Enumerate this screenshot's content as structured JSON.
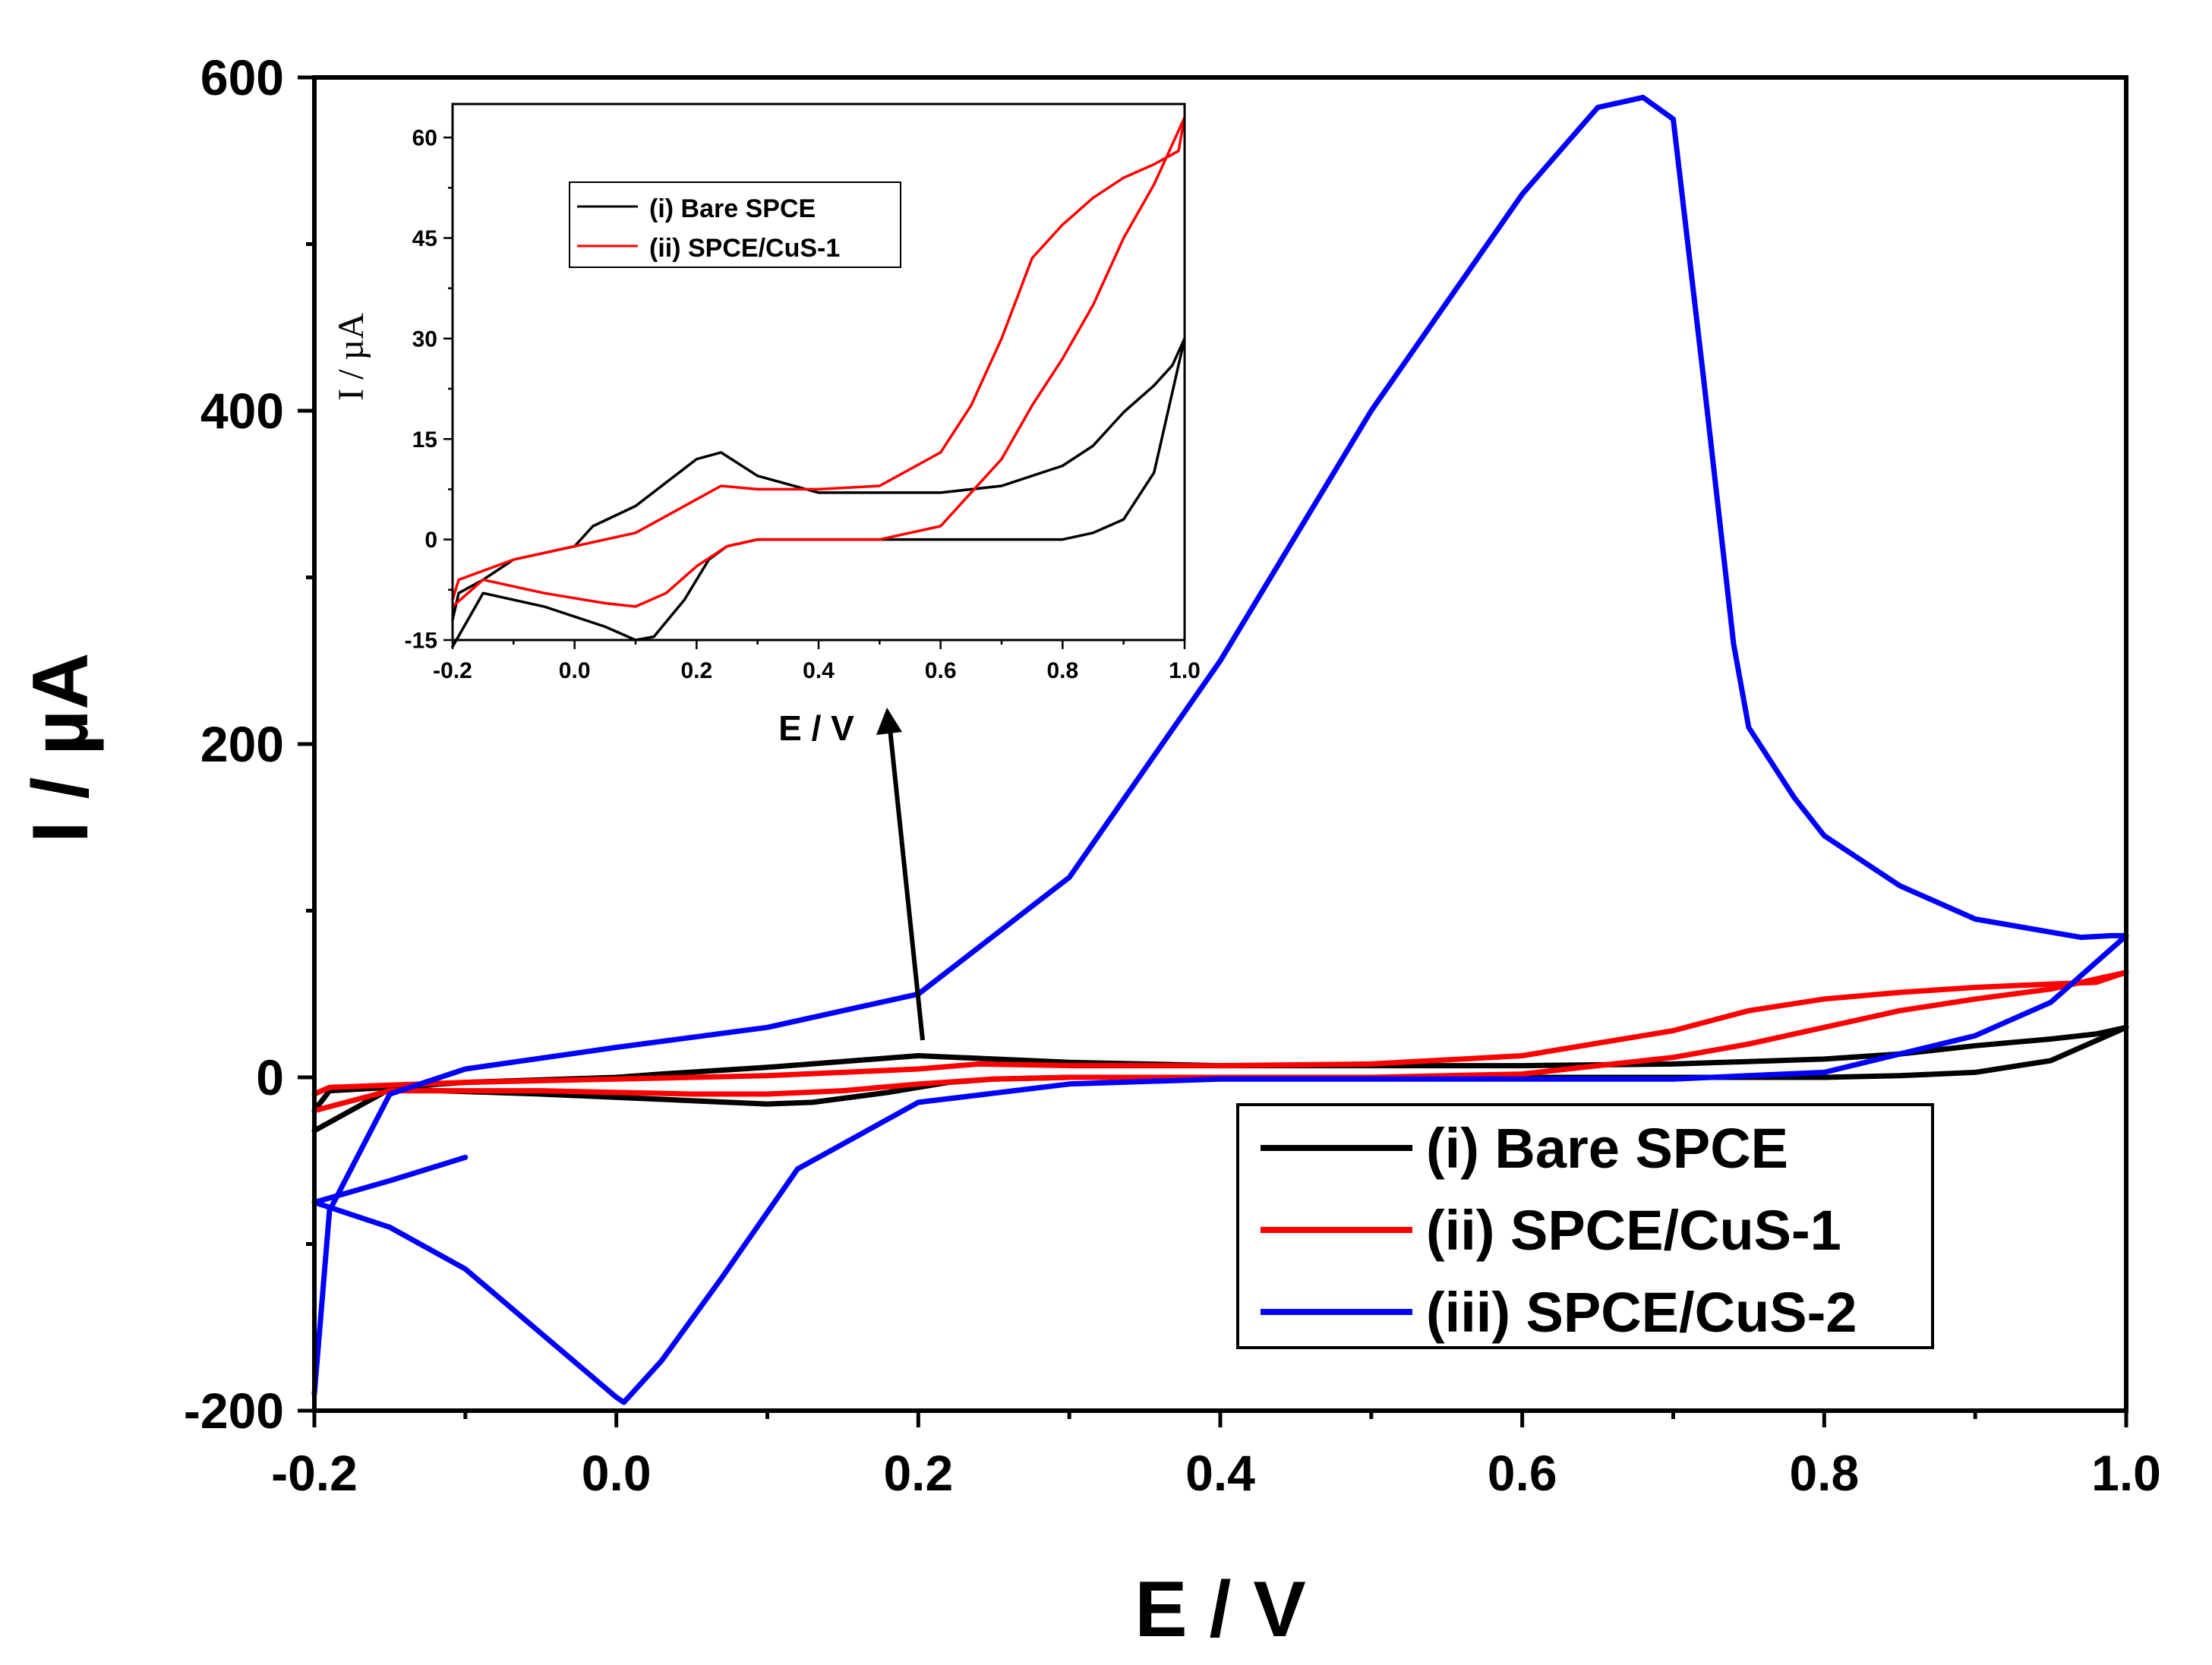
{
  "chart_data": [
    {
      "id": "main",
      "type": "line",
      "title": "",
      "xlabel": "E / V",
      "ylabel": "I / µA",
      "xlim": [
        -0.2,
        1.0
      ],
      "ylim": [
        -200,
        600
      ],
      "xticks": [
        -0.2,
        0.0,
        0.2,
        0.4,
        0.6,
        0.8,
        1.0
      ],
      "xtick_labels": [
        "-0.2",
        "0.0",
        "0.2",
        "0.4",
        "0.6",
        "0.8",
        "1.0"
      ],
      "yticks": [
        -200,
        0,
        200,
        400,
        600
      ],
      "ytick_labels": [
        "-200",
        "0",
        "200",
        "400",
        "600"
      ],
      "legend_position": "bottom-right",
      "legend": [
        "(i) Bare SPCE",
        "(ii) SPCE/CuS-1",
        "(iii) SPCE/CuS-2"
      ],
      "series": [
        {
          "name": "(i) Bare SPCE",
          "color": "#000000",
          "x": [
            -0.2,
            -0.15,
            -0.05,
            0.05,
            0.1,
            0.13,
            0.18,
            0.22,
            0.25,
            0.3,
            0.4,
            0.5,
            0.6,
            0.7,
            0.8,
            0.85,
            0.9,
            0.95,
            1.0,
            0.98,
            0.95,
            0.9,
            0.85,
            0.8,
            0.7,
            0.6,
            0.5,
            0.4,
            0.3,
            0.2,
            0.1,
            0.03,
            0.0,
            -0.1,
            -0.15,
            -0.19,
            -0.2
          ],
          "y": [
            -32,
            -7,
            -10,
            -14,
            -16,
            -15,
            -9,
            -3,
            -1,
            0,
            0,
            0,
            0,
            0,
            0,
            1,
            3,
            10,
            30,
            26,
            23,
            19,
            14,
            11,
            8,
            7,
            7,
            7,
            9,
            13,
            6,
            2,
            0,
            -3,
            -6,
            -8,
            -20
          ]
        },
        {
          "name": "(ii) SPCE/CuS-1",
          "color": "#ff0000",
          "x": [
            -0.2,
            -0.15,
            -0.05,
            0.05,
            0.1,
            0.15,
            0.2,
            0.25,
            0.3,
            0.4,
            0.5,
            0.6,
            0.65,
            0.7,
            0.75,
            0.8,
            0.85,
            0.9,
            0.95,
            1.0,
            0.98,
            0.95,
            0.9,
            0.85,
            0.8,
            0.75,
            0.7,
            0.6,
            0.5,
            0.4,
            0.3,
            0.24,
            0.2,
            0.1,
            0.0,
            -0.1,
            -0.19,
            -0.2
          ],
          "y": [
            -20,
            -8,
            -8,
            -10,
            -10,
            -8,
            -4,
            -1,
            0,
            0,
            0,
            2,
            7,
            12,
            20,
            30,
            40,
            47,
            53,
            63,
            57,
            56,
            54,
            51,
            47,
            40,
            28,
            13,
            8,
            7,
            7,
            8,
            5,
            1,
            -1,
            -3,
            -6,
            -10
          ]
        },
        {
          "name": "(iii) SPCE/CuS-2",
          "color": "#0000ff",
          "x": [
            -0.1,
            -0.15,
            -0.2,
            -0.15,
            -0.1,
            0.0,
            0.005,
            0.03,
            0.07,
            0.12,
            0.2,
            0.3,
            0.4,
            0.5,
            0.6,
            0.7,
            0.8,
            0.9,
            0.95,
            1.0,
            0.99,
            0.97,
            0.9,
            0.85,
            0.8,
            0.78,
            0.75,
            0.74,
            0.72,
            0.7,
            0.68,
            0.65,
            0.6,
            0.5,
            0.4,
            0.3,
            0.2,
            0.1,
            0.0,
            -0.1,
            -0.15,
            -0.19,
            -0.2
          ],
          "y": [
            -48,
            -62,
            -75,
            -90,
            -115,
            -192,
            -195,
            -170,
            -120,
            -55,
            -15,
            -4,
            -1,
            -1,
            -1,
            -1,
            3,
            25,
            45,
            85,
            85,
            84,
            95,
            115,
            145,
            168,
            210,
            260,
            420,
            575,
            588,
            582,
            530,
            400,
            250,
            120,
            50,
            30,
            18,
            5,
            -10,
            -80,
            -190
          ]
        }
      ]
    },
    {
      "id": "inset",
      "type": "line",
      "title": "",
      "xlabel": "E / V",
      "ylabel": "I / µA",
      "xlim": [
        -0.2,
        1.0
      ],
      "ylim": [
        -15,
        65
      ],
      "xticks": [
        -0.2,
        0.0,
        0.2,
        0.4,
        0.6,
        0.8,
        1.0
      ],
      "xtick_labels": [
        "-0.2",
        "0.0",
        "0.2",
        "0.4",
        "0.6",
        "0.8",
        "1.0"
      ],
      "yticks": [
        -15,
        0,
        15,
        30,
        45,
        60
      ],
      "ytick_labels": [
        "-15",
        "0",
        "15",
        "30",
        "45",
        "60"
      ],
      "legend_position": "top-left",
      "legend": [
        "(i) Bare SPCE",
        "(ii) SPCE/CuS-1"
      ],
      "series": [
        {
          "name": "(i) Bare SPCE",
          "color": "#000000",
          "x": [
            -0.2,
            -0.15,
            -0.05,
            0.05,
            0.1,
            0.13,
            0.18,
            0.22,
            0.25,
            0.3,
            0.4,
            0.5,
            0.6,
            0.7,
            0.8,
            0.85,
            0.9,
            0.95,
            1.0,
            0.98,
            0.95,
            0.9,
            0.85,
            0.8,
            0.7,
            0.6,
            0.5,
            0.4,
            0.3,
            0.24,
            0.2,
            0.1,
            0.03,
            0.0,
            -0.1,
            -0.15,
            -0.19,
            -0.2
          ],
          "y": [
            -16,
            -8,
            -10,
            -13,
            -15,
            -14.5,
            -9,
            -3,
            -1,
            0,
            0,
            0,
            0,
            0,
            0,
            1,
            3,
            10,
            30,
            26,
            23,
            19,
            14,
            11,
            8,
            7,
            7,
            7,
            9.5,
            13,
            12,
            5,
            2,
            -1,
            -3,
            -6,
            -8,
            -12
          ]
        },
        {
          "name": "(ii) SPCE/CuS-1",
          "color": "#ff0000",
          "x": [
            -0.2,
            -0.15,
            -0.05,
            0.05,
            0.1,
            0.15,
            0.2,
            0.25,
            0.3,
            0.4,
            0.5,
            0.6,
            0.65,
            0.7,
            0.75,
            0.8,
            0.85,
            0.9,
            0.95,
            1.0,
            0.99,
            0.95,
            0.9,
            0.85,
            0.8,
            0.75,
            0.7,
            0.65,
            0.6,
            0.5,
            0.4,
            0.3,
            0.24,
            0.2,
            0.1,
            0.0,
            -0.1,
            -0.19,
            -0.2
          ],
          "y": [
            -10,
            -6,
            -8,
            -9.5,
            -10,
            -8,
            -4,
            -1,
            0,
            0,
            0,
            2,
            7,
            12,
            20,
            27,
            35,
            45,
            53,
            63,
            58,
            56,
            54,
            51,
            47,
            42,
            30,
            20,
            13,
            8,
            7.5,
            7.5,
            8,
            6,
            1,
            -1,
            -3,
            -6,
            -9
          ]
        }
      ]
    }
  ]
}
